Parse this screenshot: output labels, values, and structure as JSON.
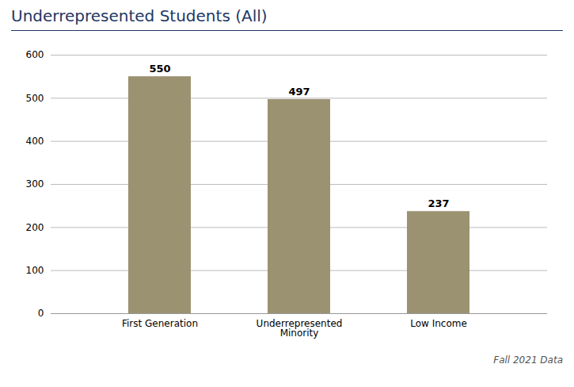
{
  "chart_data": {
    "type": "bar",
    "title": "Underrepresented Students (All)",
    "categories": [
      "First Generation",
      "Underrepresented\nMinority",
      "Low Income"
    ],
    "values": [
      550,
      497,
      237
    ],
    "color": "#9b9272",
    "ylim": [
      0,
      600
    ],
    "yticks": [
      0,
      100,
      200,
      300,
      400,
      500,
      600
    ],
    "grid": true,
    "data_labels": true,
    "annotation": "Fall 2021 Data"
  }
}
